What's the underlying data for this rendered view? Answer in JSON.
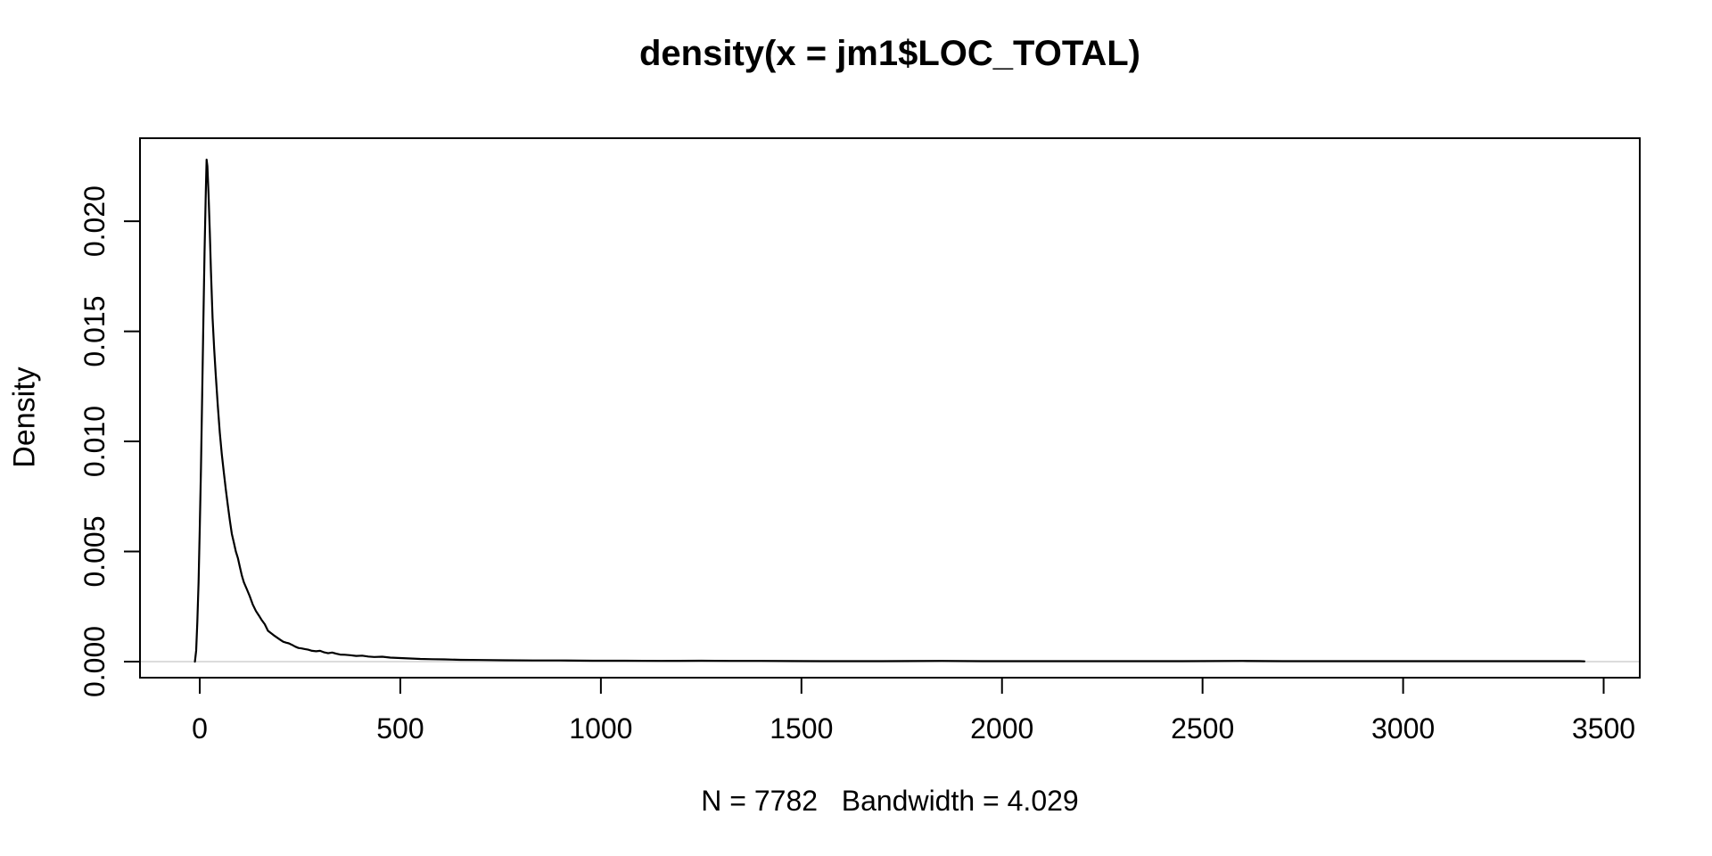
{
  "chart_data": {
    "type": "line",
    "title": "density(x = jm1$LOC_TOTAL)",
    "xlabel": "N = 7782   Bandwidth = 4.029",
    "ylabel": "Density",
    "n": 7782,
    "bandwidth": 4.029,
    "x_ticks": {
      "values": [
        0,
        500,
        1000,
        1500,
        2000,
        2500,
        3000,
        3500
      ],
      "labels": [
        "0",
        "500",
        "1000",
        "1500",
        "2000",
        "2500",
        "3000",
        "3500"
      ]
    },
    "y_ticks": {
      "values": [
        0,
        0.005,
        0.01,
        0.015,
        0.02
      ],
      "labels": [
        "0.000",
        "0.005",
        "0.010",
        "0.015",
        "0.020"
      ]
    },
    "xlim": [
      -149,
      3590
    ],
    "ylim": [
      -0.00073,
      0.02377
    ],
    "grid": false,
    "legend": null,
    "zero_line": true,
    "zero_line_color": "#dcdcdc",
    "box_color": "#000000",
    "curve_color": "#000000",
    "peak": {
      "x": 17,
      "y": 0.0228
    },
    "series": [
      {
        "name": "density",
        "points": [
          [
            -12,
            0
          ],
          [
            -9,
            0.0005
          ],
          [
            -6,
            0.0018
          ],
          [
            -3,
            0.0036
          ],
          [
            0,
            0.006
          ],
          [
            3,
            0.0088
          ],
          [
            6,
            0.012
          ],
          [
            9,
            0.0155
          ],
          [
            12,
            0.0186
          ],
          [
            15,
            0.0213
          ],
          [
            17,
            0.0228
          ],
          [
            19,
            0.0225
          ],
          [
            22,
            0.0212
          ],
          [
            25,
            0.0195
          ],
          [
            28,
            0.0177
          ],
          [
            32,
            0.0156
          ],
          [
            36,
            0.0142
          ],
          [
            40,
            0.013
          ],
          [
            45,
            0.0116
          ],
          [
            50,
            0.0104
          ],
          [
            55,
            0.0094
          ],
          [
            60,
            0.0086
          ],
          [
            65,
            0.0078
          ],
          [
            70,
            0.0071
          ],
          [
            75,
            0.0064
          ],
          [
            80,
            0.0058
          ],
          [
            85,
            0.0054
          ],
          [
            90,
            0.005
          ],
          [
            95,
            0.0047
          ],
          [
            100,
            0.0043
          ],
          [
            105,
            0.0039
          ],
          [
            110,
            0.0036
          ],
          [
            117,
            0.0033
          ],
          [
            124,
            0.003
          ],
          [
            132,
            0.0026
          ],
          [
            140,
            0.0023
          ],
          [
            147,
            0.0021
          ],
          [
            154,
            0.0019
          ],
          [
            162,
            0.0017
          ],
          [
            170,
            0.0014
          ],
          [
            177,
            0.0013
          ],
          [
            184,
            0.0012
          ],
          [
            192,
            0.0011
          ],
          [
            200,
            0.001
          ],
          [
            208,
            0.0009
          ],
          [
            215,
            0.00086
          ],
          [
            222,
            0.00083
          ],
          [
            230,
            0.00076
          ],
          [
            238,
            0.00068
          ],
          [
            246,
            0.00062
          ],
          [
            254,
            0.0006
          ],
          [
            262,
            0.00057
          ],
          [
            270,
            0.00054
          ],
          [
            280,
            0.00049
          ],
          [
            290,
            0.00047
          ],
          [
            300,
            0.00049
          ],
          [
            310,
            0.00042
          ],
          [
            320,
            0.00038
          ],
          [
            330,
            0.00041
          ],
          [
            340,
            0.00036
          ],
          [
            350,
            0.00032
          ],
          [
            362,
            0.00031
          ],
          [
            375,
            0.00029
          ],
          [
            390,
            0.00026
          ],
          [
            405,
            0.00027
          ],
          [
            420,
            0.00023
          ],
          [
            435,
            0.00021
          ],
          [
            455,
            0.00022
          ],
          [
            475,
            0.00018
          ],
          [
            500,
            0.00016
          ],
          [
            525,
            0.00014
          ],
          [
            550,
            0.00012
          ],
          [
            580,
            0.00011
          ],
          [
            610,
            0.0001
          ],
          [
            650,
            8e-05
          ],
          [
            700,
            7e-05
          ],
          [
            760,
            6e-05
          ],
          [
            830,
            5e-05
          ],
          [
            900,
            5e-05
          ],
          [
            980,
            4e-05
          ],
          [
            1060,
            4e-05
          ],
          [
            1150,
            3e-05
          ],
          [
            1250,
            4e-05
          ],
          [
            1320,
            3e-05
          ],
          [
            1400,
            3e-05
          ],
          [
            1550,
            2e-05
          ],
          [
            1700,
            2e-05
          ],
          [
            1850,
            3e-05
          ],
          [
            1950,
            2e-05
          ],
          [
            2100,
            2e-05
          ],
          [
            2300,
            2e-05
          ],
          [
            2450,
            2e-05
          ],
          [
            2600,
            3e-05
          ],
          [
            2700,
            2e-05
          ],
          [
            2900,
            2e-05
          ],
          [
            3100,
            2e-05
          ],
          [
            3300,
            2e-05
          ],
          [
            3440,
            2e-05
          ],
          [
            3452,
            1e-05
          ]
        ]
      }
    ]
  }
}
